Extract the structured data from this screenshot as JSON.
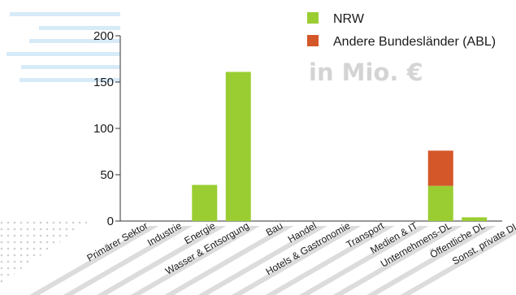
{
  "chart_data": {
    "type": "bar",
    "stacked": true,
    "categories": [
      "Primärer Sektor",
      "Industrie",
      "Energie",
      "Wasser & Entsorgung",
      "Bau",
      "Handel",
      "Hotels & Gastronomie",
      "Transport",
      "Medien & IT",
      "Unternehmens-DL",
      "Öffentliche DL",
      "Sonst. private DL"
    ],
    "series": [
      {
        "name": "NRW",
        "color": "#9acd32",
        "values": [
          0,
          0,
          39,
          161,
          0,
          0,
          0,
          0,
          0,
          38,
          4,
          0
        ]
      },
      {
        "name": "Andere Bundesländer (ABL)",
        "color": "#d4572a",
        "values": [
          0,
          0,
          0,
          0,
          0,
          0,
          0,
          0,
          0,
          38,
          0,
          0
        ]
      }
    ],
    "unit_label": "in Mio. €",
    "yticks": [
      0,
      50,
      100,
      150,
      200
    ],
    "ylim": [
      0,
      200
    ],
    "legend_position": "top-right",
    "grid": false
  }
}
